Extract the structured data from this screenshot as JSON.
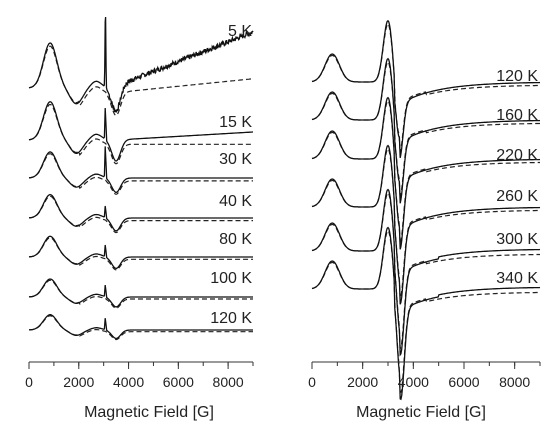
{
  "chart_data": [
    {
      "type": "line",
      "panel": "left",
      "xlabel": "Magnetic Field [G]",
      "ylabel": "",
      "xlim": [
        0,
        9000
      ],
      "xticks": [
        0,
        2000,
        4000,
        6000,
        8000
      ],
      "xtick_labels": [
        "0",
        "2000",
        "4000",
        "6000",
        "8000"
      ],
      "grid": false,
      "series_styles": [
        "experimental (solid)",
        "simulation (dashed)"
      ],
      "spectra": [
        {
          "label": "5 K",
          "features": {
            "peak_field": 800,
            "sharp_line_field": 3070,
            "trough_field": 3400,
            "end_drift": "rising noisy"
          }
        },
        {
          "label": "15 K",
          "features": {
            "peak_field": 850,
            "sharp_line_field": 3070,
            "trough_field": 3400
          }
        },
        {
          "label": "30 K",
          "features": {
            "peak_field": 850,
            "sharp_line_field": 3070,
            "trough_field": 3400
          }
        },
        {
          "label": "40 K",
          "features": {
            "peak_field": 850,
            "sharp_line_field": 3070,
            "trough_field": 3400
          }
        },
        {
          "label": "80 K",
          "features": {
            "peak_field": 850,
            "sharp_line_field": 3070,
            "trough_field": 3400
          }
        },
        {
          "label": "100 K",
          "features": {
            "peak_field": 850,
            "sharp_line_field": 3070,
            "trough_field": 3400
          }
        },
        {
          "label": "120 K",
          "features": {
            "peak_field": 850,
            "sharp_line_field": 3070,
            "trough_field": 3400
          }
        }
      ]
    },
    {
      "type": "line",
      "panel": "right",
      "xlabel": "Magnetic Field [G]",
      "ylabel": "",
      "xlim": [
        0,
        9000
      ],
      "xticks": [
        0,
        2000,
        4000,
        6000,
        8000
      ],
      "xtick_labels": [
        "0",
        "2000",
        "4000",
        "6000",
        "8000"
      ],
      "grid": false,
      "series_styles": [
        "experimental (solid)",
        "simulation (dashed)"
      ],
      "spectra": [
        {
          "label": "120 K",
          "features": {
            "peak_field": 800,
            "main_peak_field": 3000,
            "trough_field": 3400
          }
        },
        {
          "label": "160 K",
          "features": {
            "peak_field": 800,
            "main_peak_field": 3000,
            "trough_field": 3450
          }
        },
        {
          "label": "220 K",
          "features": {
            "peak_field": 800,
            "main_peak_field": 3000,
            "trough_field": 3450
          }
        },
        {
          "label": "260 K",
          "features": {
            "peak_field": 800,
            "main_peak_field": 3000,
            "trough_field": 3500
          }
        },
        {
          "label": "300 K",
          "features": {
            "peak_field": 800,
            "main_peak_field": 3000,
            "trough_field": 3500
          }
        },
        {
          "label": "340 K",
          "features": {
            "peak_field": 800,
            "main_peak_field": 3000,
            "trough_field": 3500
          }
        }
      ]
    }
  ]
}
